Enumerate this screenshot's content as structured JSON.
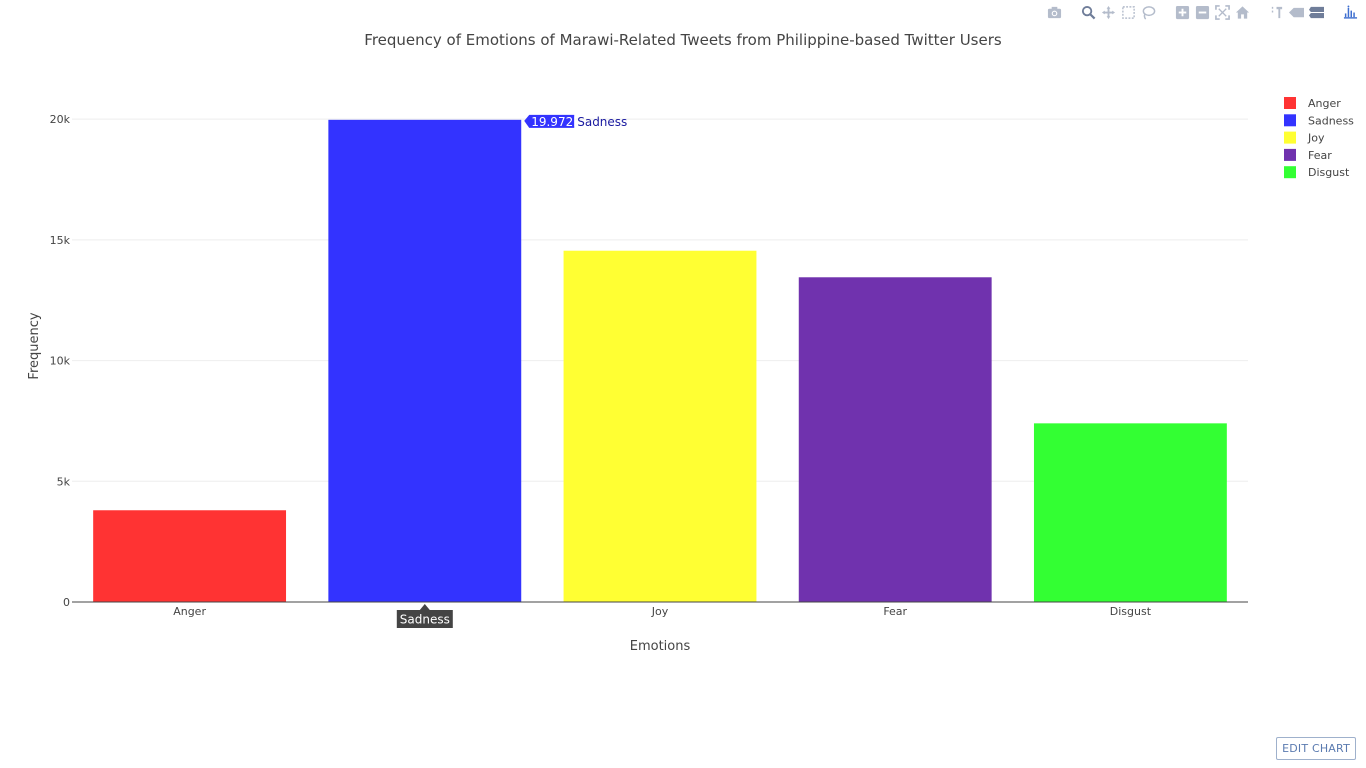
{
  "toolbar": {
    "buttons": [
      {
        "name": "camera-icon"
      },
      {
        "name": "zoom-icon"
      },
      {
        "name": "pan-icon"
      },
      {
        "name": "box-select-icon"
      },
      {
        "name": "lasso-select-icon"
      },
      {
        "name": "zoom-in-icon"
      },
      {
        "name": "zoom-out-icon"
      },
      {
        "name": "autoscale-icon"
      },
      {
        "name": "home-icon"
      },
      {
        "name": "spike-lines-icon"
      },
      {
        "name": "hover-closest-icon"
      },
      {
        "name": "hover-compare-icon"
      },
      {
        "name": "plotly-logo-icon"
      }
    ],
    "edit_label": "EDIT CHART"
  },
  "chart_data": {
    "type": "bar",
    "title": "Frequency of Emotions of Marawi-Related Tweets from Philippine-based Twitter Users",
    "xlabel": "Emotions",
    "ylabel": "Frequency",
    "categories": [
      "Anger",
      "Sadness",
      "Joy",
      "Fear",
      "Disgust"
    ],
    "values": [
      3800,
      19972,
      14550,
      13450,
      7400
    ],
    "colors": [
      "#ff3333",
      "#3333ff",
      "#ffff33",
      "#7032ae",
      "#33ff33"
    ],
    "ylim": [
      0,
      21000
    ],
    "yticks": [
      0,
      5000,
      10000,
      15000,
      20000
    ],
    "ytick_labels": [
      "0",
      "5k",
      "10k",
      "15k",
      "20k"
    ],
    "grid": true,
    "legend": {
      "position": "top-right",
      "entries": [
        "Anger",
        "Sadness",
        "Joy",
        "Fear",
        "Disgust"
      ]
    },
    "hover": {
      "category": "Sadness",
      "value_label": "19.972k",
      "series_label": "Sadness",
      "axis_label": "Sadness"
    }
  }
}
